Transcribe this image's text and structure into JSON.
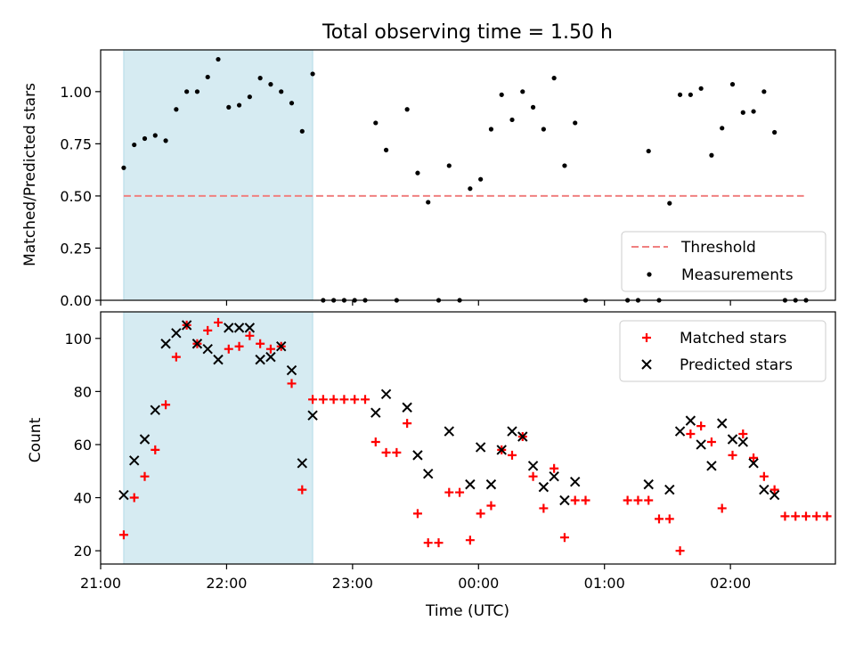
{
  "chart_data": [
    {
      "type": "scatter",
      "title": "Total observing time = 1.50 h",
      "ylabel": "Matched/Predicted stars",
      "xlabel": "",
      "xlim": [
        "21:00",
        "02:50"
      ],
      "ylim": [
        0,
        1.2
      ],
      "yticks": [
        "0.00",
        "0.25",
        "0.50",
        "0.75",
        "1.00"
      ],
      "legend_position": "lower-right",
      "shaded_interval": [
        "21:11",
        "22:41"
      ],
      "threshold": {
        "name": "Threshold",
        "value": 0.5,
        "x_range": [
          "21:11",
          "02:35"
        ],
        "color": "#f08080",
        "style": "dashed"
      },
      "series": [
        {
          "name": "Measurements",
          "marker": "dot",
          "color": "#000000",
          "points": [
            [
              "21:11",
              0.635
            ],
            [
              "21:16",
              0.745
            ],
            [
              "21:21",
              0.775
            ],
            [
              "21:26",
              0.79
            ],
            [
              "21:31",
              0.765
            ],
            [
              "21:36",
              0.915
            ],
            [
              "21:41",
              1.0
            ],
            [
              "21:46",
              1.0
            ],
            [
              "21:51",
              1.07
            ],
            [
              "21:56",
              1.155
            ],
            [
              "22:01",
              0.925
            ],
            [
              "22:06",
              0.935
            ],
            [
              "22:11",
              0.975
            ],
            [
              "22:16",
              1.065
            ],
            [
              "22:21",
              1.035
            ],
            [
              "22:26",
              1.0
            ],
            [
              "22:31",
              0.945
            ],
            [
              "22:36",
              0.81
            ],
            [
              "22:41",
              1.085
            ],
            [
              "22:46",
              0
            ],
            [
              "22:51",
              0
            ],
            [
              "22:56",
              0
            ],
            [
              "23:01",
              0
            ],
            [
              "23:06",
              0
            ],
            [
              "23:11",
              0.85
            ],
            [
              "23:16",
              0.72
            ],
            [
              "23:21",
              0
            ],
            [
              "23:26",
              0.915
            ],
            [
              "23:31",
              0.61
            ],
            [
              "23:36",
              0.47
            ],
            [
              "23:41",
              0
            ],
            [
              "23:46",
              0.645
            ],
            [
              "23:51",
              0
            ],
            [
              "23:56",
              0.535
            ],
            [
              "00:01",
              0.58
            ],
            [
              "00:06",
              0.82
            ],
            [
              "00:11",
              0.985
            ],
            [
              "00:16",
              0.865
            ],
            [
              "00:21",
              1.0
            ],
            [
              "00:26",
              0.925
            ],
            [
              "00:31",
              0.82
            ],
            [
              "00:36",
              1.065
            ],
            [
              "00:41",
              0.645
            ],
            [
              "00:46",
              0.85
            ],
            [
              "00:51",
              0
            ],
            [
              "01:11",
              0
            ],
            [
              "01:16",
              0
            ],
            [
              "01:21",
              0.715
            ],
            [
              "01:26",
              0
            ],
            [
              "01:31",
              0.465
            ],
            [
              "01:36",
              0.985
            ],
            [
              "01:41",
              0.985
            ],
            [
              "01:46",
              1.015
            ],
            [
              "01:51",
              0.695
            ],
            [
              "01:56",
              0.825
            ],
            [
              "02:01",
              1.035
            ],
            [
              "02:06",
              0.9
            ],
            [
              "02:11",
              0.905
            ],
            [
              "02:16",
              1.0
            ],
            [
              "02:21",
              0.805
            ],
            [
              "02:26",
              0
            ],
            [
              "02:31",
              0
            ],
            [
              "02:36",
              0
            ]
          ]
        }
      ]
    },
    {
      "type": "scatter",
      "title": "",
      "xlabel": "Time (UTC)",
      "ylabel": "Count",
      "xlim": [
        "21:00",
        "02:50"
      ],
      "ylim": [
        15,
        110
      ],
      "xticks": [
        "21:00",
        "22:00",
        "23:00",
        "00:00",
        "01:00",
        "02:00"
      ],
      "yticks": [
        "20",
        "40",
        "60",
        "80",
        "100"
      ],
      "legend_position": "top-right",
      "shaded_interval": [
        "21:11",
        "22:41"
      ],
      "series": [
        {
          "name": "Matched stars",
          "marker": "plus",
          "color": "#ff0000",
          "points": [
            [
              "21:11",
              26
            ],
            [
              "21:16",
              40
            ],
            [
              "21:21",
              48
            ],
            [
              "21:26",
              58
            ],
            [
              "21:31",
              75
            ],
            [
              "21:36",
              93
            ],
            [
              "21:41",
              105
            ],
            [
              "21:46",
              98
            ],
            [
              "21:51",
              103
            ],
            [
              "21:56",
              106
            ],
            [
              "22:01",
              96
            ],
            [
              "22:06",
              97
            ],
            [
              "22:11",
              101
            ],
            [
              "22:16",
              98
            ],
            [
              "22:21",
              96
            ],
            [
              "22:26",
              97
            ],
            [
              "22:31",
              83
            ],
            [
              "22:36",
              43
            ],
            [
              "22:41",
              77
            ],
            [
              "22:46",
              77
            ],
            [
              "22:51",
              77
            ],
            [
              "22:56",
              77
            ],
            [
              "23:01",
              77
            ],
            [
              "23:06",
              77
            ],
            [
              "23:11",
              61
            ],
            [
              "23:16",
              57
            ],
            [
              "23:21",
              57
            ],
            [
              "23:26",
              68
            ],
            [
              "23:31",
              34
            ],
            [
              "23:36",
              23
            ],
            [
              "23:41",
              23
            ],
            [
              "23:46",
              42
            ],
            [
              "23:51",
              42
            ],
            [
              "23:56",
              24
            ],
            [
              "00:01",
              34
            ],
            [
              "00:06",
              37
            ],
            [
              "00:11",
              58
            ],
            [
              "00:16",
              56
            ],
            [
              "00:21",
              63
            ],
            [
              "00:26",
              48
            ],
            [
              "00:31",
              36
            ],
            [
              "00:36",
              51
            ],
            [
              "00:41",
              25
            ],
            [
              "00:46",
              39
            ],
            [
              "00:51",
              39
            ],
            [
              "01:11",
              39
            ],
            [
              "01:16",
              39
            ],
            [
              "01:21",
              39
            ],
            [
              "01:26",
              32
            ],
            [
              "01:31",
              32
            ],
            [
              "01:36",
              20
            ],
            [
              "01:41",
              64
            ],
            [
              "01:46",
              67
            ],
            [
              "01:51",
              61
            ],
            [
              "01:56",
              36
            ],
            [
              "02:01",
              56
            ],
            [
              "02:06",
              64
            ],
            [
              "02:11",
              55
            ],
            [
              "02:16",
              48
            ],
            [
              "02:21",
              43
            ],
            [
              "02:26",
              33
            ],
            [
              "02:31",
              33
            ],
            [
              "02:36",
              33
            ],
            [
              "02:41",
              33
            ],
            [
              "02:46",
              33
            ]
          ]
        },
        {
          "name": "Predicted stars",
          "marker": "x",
          "color": "#000000",
          "points": [
            [
              "21:11",
              41
            ],
            [
              "21:16",
              54
            ],
            [
              "21:21",
              62
            ],
            [
              "21:26",
              73
            ],
            [
              "21:31",
              98
            ],
            [
              "21:36",
              102
            ],
            [
              "21:41",
              105
            ],
            [
              "21:46",
              98
            ],
            [
              "21:51",
              96
            ],
            [
              "21:56",
              92
            ],
            [
              "22:01",
              104
            ],
            [
              "22:06",
              104
            ],
            [
              "22:11",
              104
            ],
            [
              "22:16",
              92
            ],
            [
              "22:21",
              93
            ],
            [
              "22:26",
              97
            ],
            [
              "22:31",
              88
            ],
            [
              "22:36",
              53
            ],
            [
              "22:41",
              71
            ],
            [
              "23:11",
              72
            ],
            [
              "23:16",
              79
            ],
            [
              "23:26",
              74
            ],
            [
              "23:31",
              56
            ],
            [
              "23:36",
              49
            ],
            [
              "23:46",
              65
            ],
            [
              "23:56",
              45
            ],
            [
              "00:01",
              59
            ],
            [
              "00:06",
              45
            ],
            [
              "00:11",
              58
            ],
            [
              "00:16",
              65
            ],
            [
              "00:21",
              63
            ],
            [
              "00:26",
              52
            ],
            [
              "00:31",
              44
            ],
            [
              "00:36",
              48
            ],
            [
              "00:41",
              39
            ],
            [
              "00:46",
              46
            ],
            [
              "01:21",
              45
            ],
            [
              "01:31",
              43
            ],
            [
              "01:36",
              65
            ],
            [
              "01:41",
              69
            ],
            [
              "01:46",
              60
            ],
            [
              "01:51",
              52
            ],
            [
              "01:56",
              68
            ],
            [
              "02:01",
              62
            ],
            [
              "02:06",
              61
            ],
            [
              "02:11",
              53
            ],
            [
              "02:16",
              43
            ],
            [
              "02:21",
              41
            ]
          ]
        }
      ]
    }
  ]
}
